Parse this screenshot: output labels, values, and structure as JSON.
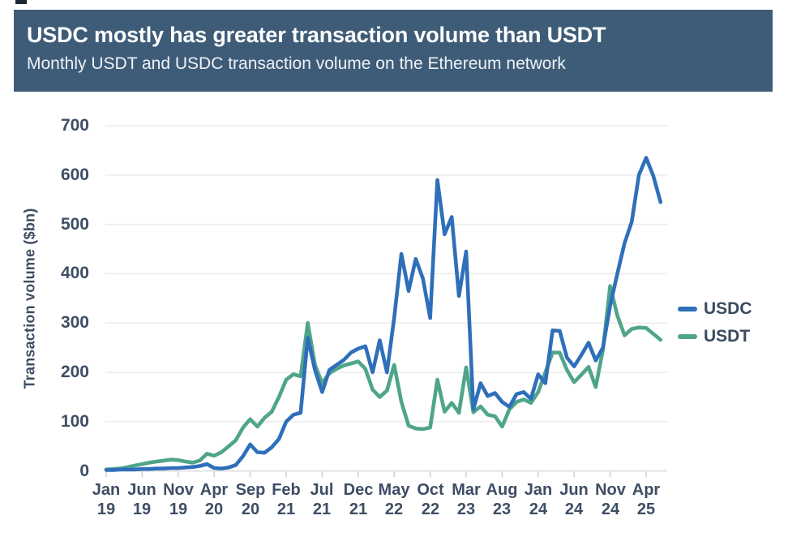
{
  "header": {
    "title": "USDC mostly has greater transaction volume than USDT",
    "subtitle": "Monthly USDT and USDC transaction volume on the Ethereum network",
    "bg_color": "#3e5c78"
  },
  "chart_data": {
    "type": "line",
    "title": "USDC mostly has greater transaction volume than USDT",
    "subtitle": "Monthly USDT and USDC transaction volume on the Ethereum network",
    "ylabel": "Transaction volume ($bn)",
    "xlabel": "",
    "ylim": [
      0,
      700
    ],
    "yticks": [
      0,
      100,
      200,
      300,
      400,
      500,
      600,
      700
    ],
    "grid": "horizontal",
    "legend_position": "right",
    "x_unit": "month",
    "x_start": "Jan 2019",
    "x_end": "Jun 2025",
    "x_ticks": [
      {
        "month_index": 0,
        "label_month": "Jan",
        "label_year": "19"
      },
      {
        "month_index": 5,
        "label_month": "Jun",
        "label_year": "19"
      },
      {
        "month_index": 10,
        "label_month": "Nov",
        "label_year": "19"
      },
      {
        "month_index": 15,
        "label_month": "Apr",
        "label_year": "20"
      },
      {
        "month_index": 20,
        "label_month": "Sep",
        "label_year": "20"
      },
      {
        "month_index": 25,
        "label_month": "Feb",
        "label_year": "21"
      },
      {
        "month_index": 30,
        "label_month": "Jul",
        "label_year": "21"
      },
      {
        "month_index": 35,
        "label_month": "Dec",
        "label_year": "21"
      },
      {
        "month_index": 40,
        "label_month": "May",
        "label_year": "22"
      },
      {
        "month_index": 45,
        "label_month": "Oct",
        "label_year": "22"
      },
      {
        "month_index": 50,
        "label_month": "Mar",
        "label_year": "23"
      },
      {
        "month_index": 55,
        "label_month": "Aug",
        "label_year": "23"
      },
      {
        "month_index": 60,
        "label_month": "Jan",
        "label_year": "24"
      },
      {
        "month_index": 65,
        "label_month": "Jun",
        "label_year": "24"
      },
      {
        "month_index": 70,
        "label_month": "Nov",
        "label_year": "24"
      },
      {
        "month_index": 75,
        "label_month": "Apr",
        "label_year": "25"
      }
    ],
    "series": [
      {
        "name": "USDC",
        "color": "#2f6fba",
        "values": [
          2,
          2,
          3,
          3,
          3,
          4,
          4,
          5,
          5,
          6,
          6,
          7,
          8,
          10,
          14,
          6,
          5,
          7,
          12,
          30,
          54,
          38,
          37,
          48,
          65,
          100,
          114,
          118,
          270,
          205,
          160,
          205,
          215,
          225,
          240,
          248,
          253,
          200,
          265,
          200,
          310,
          440,
          365,
          430,
          390,
          310,
          590,
          480,
          515,
          355,
          445,
          125,
          178,
          152,
          158,
          140,
          130,
          156,
          160,
          146,
          196,
          178,
          285,
          284,
          230,
          212,
          235,
          260,
          224,
          250,
          335,
          400,
          462,
          505,
          600,
          635,
          598,
          545
        ]
      },
      {
        "name": "USDT",
        "color": "#4fa58a",
        "values": [
          3,
          4,
          5,
          8,
          11,
          14,
          17,
          19,
          21,
          23,
          22,
          19,
          17,
          21,
          35,
          31,
          38,
          50,
          62,
          88,
          105,
          90,
          108,
          120,
          150,
          185,
          196,
          192,
          300,
          215,
          178,
          198,
          207,
          214,
          218,
          222,
          207,
          165,
          150,
          163,
          215,
          140,
          92,
          86,
          85,
          88,
          185,
          120,
          138,
          118,
          210,
          119,
          131,
          114,
          111,
          90,
          125,
          140,
          145,
          138,
          160,
          200,
          240,
          240,
          205,
          180,
          195,
          211,
          170,
          245,
          375,
          315,
          275,
          288,
          291,
          290,
          278,
          266
        ]
      }
    ]
  },
  "colors": {
    "axis_text": "#3e4d65",
    "grid_line": "#ececec",
    "axis_line": "#dcdcdc",
    "tick_mark": "#c9cdd3",
    "legend_text": "#3b4a5f",
    "background": "#ffffff"
  }
}
